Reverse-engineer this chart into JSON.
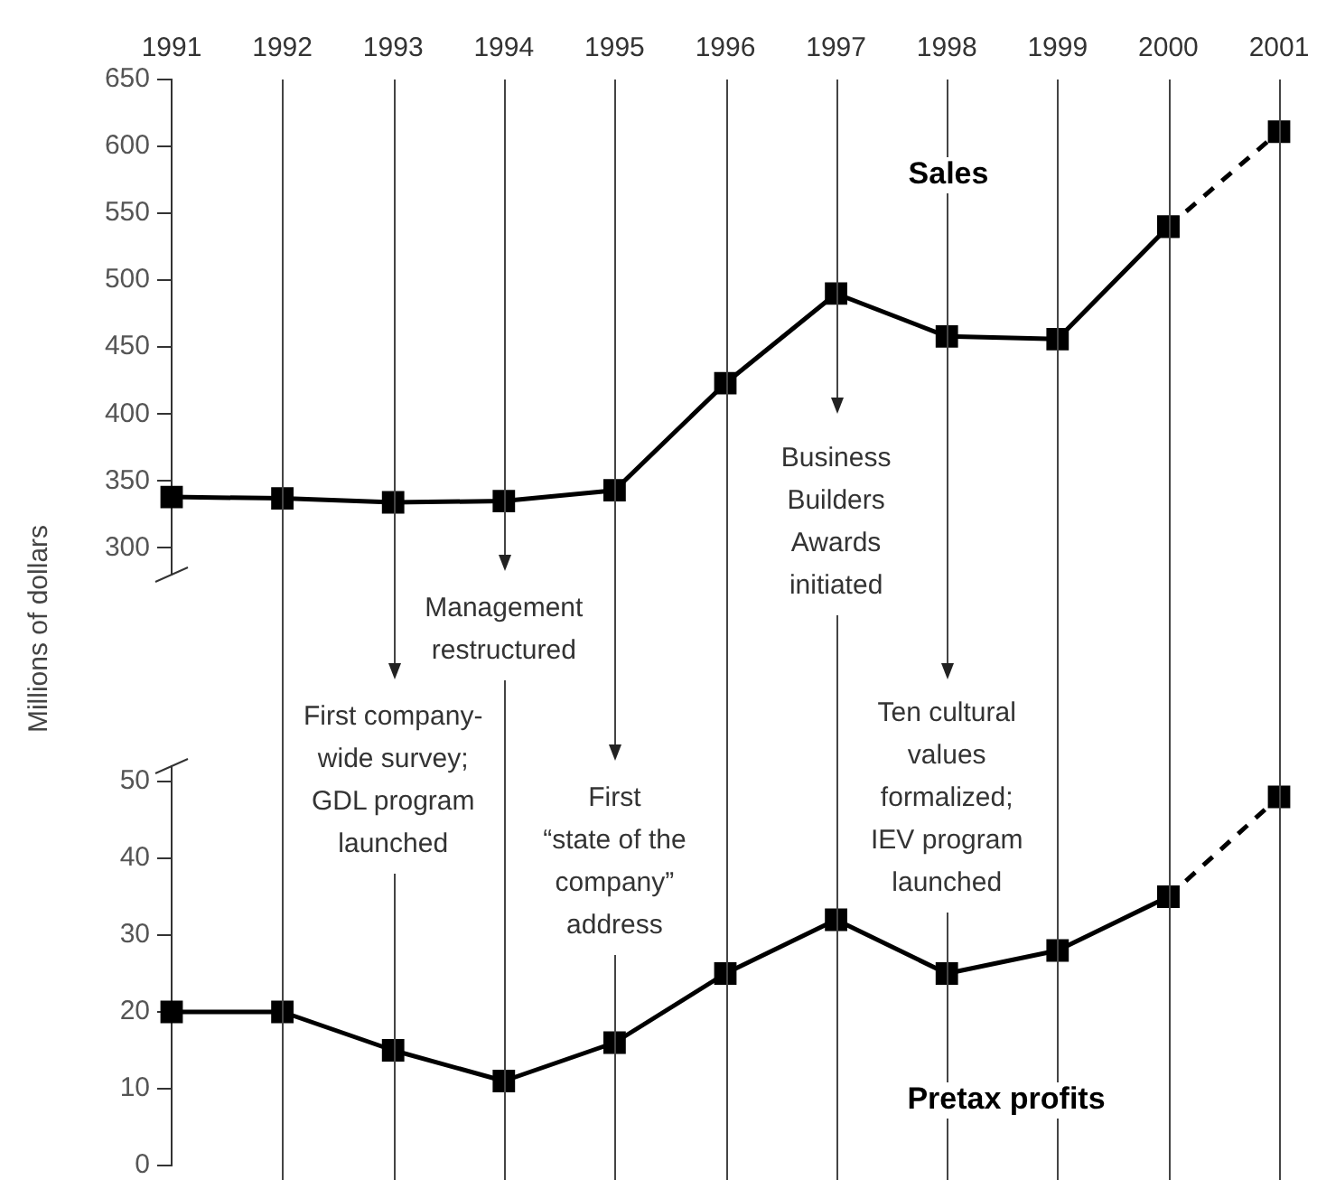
{
  "chart_data": [
    {
      "type": "line",
      "categories": [
        "1991",
        "1992",
        "1993",
        "1994",
        "1995",
        "1996",
        "1997",
        "1998",
        "1999",
        "2000",
        "2001"
      ],
      "series": [
        {
          "name": "Sales",
          "color": "#000000",
          "line_style": "solid",
          "values": [
            338,
            337,
            334,
            335,
            343,
            423,
            490,
            458,
            456,
            540,
            null
          ]
        },
        {
          "color": "#000000",
          "line_style": "dashed",
          "values": [
            null,
            null,
            null,
            null,
            null,
            null,
            null,
            null,
            null,
            540,
            611
          ]
        }
      ],
      "ylim": [
        280,
        650
      ],
      "yticks": [
        300,
        350,
        400,
        450,
        500,
        550,
        600,
        650
      ],
      "ylabel": "Millions of dollars",
      "annotations": [
        "First company-\nwide survey;\nGDL program\nlaunched",
        "Management\nrestructured",
        "First\n“state of the\ncompany”\naddress",
        "Business\nBuilders\nAwards\ninitiated",
        "Ten cultural\nvalues\nformalized;\nIEV program\nlaunched"
      ],
      "grid": "x",
      "marker": "square"
    },
    {
      "type": "line",
      "categories": [
        "1991",
        "1992",
        "1993",
        "1994",
        "1995",
        "1996",
        "1997",
        "1998",
        "1999",
        "2000",
        "2001"
      ],
      "series": [
        {
          "name": "Pretax profits",
          "color": "#000000",
          "line_style": "solid",
          "values": [
            20,
            20,
            15,
            11,
            16,
            25,
            32,
            25,
            28,
            35,
            null
          ]
        },
        {
          "color": "#000000",
          "line_style": "dashed",
          "values": [
            null,
            null,
            null,
            null,
            null,
            null,
            null,
            null,
            null,
            35,
            48
          ]
        }
      ],
      "ylim": [
        0,
        52
      ],
      "yticks": [
        0,
        10,
        20,
        30,
        40,
        50
      ],
      "grid": "x",
      "marker": "square",
      "tick_labels": "y"
    }
  ]
}
